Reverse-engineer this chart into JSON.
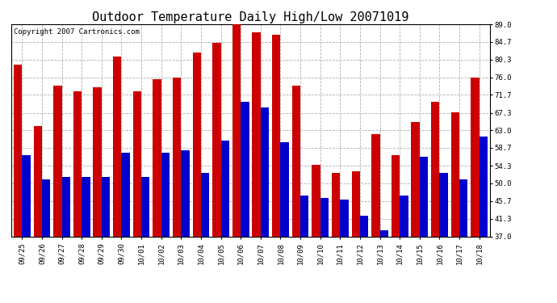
{
  "title": "Outdoor Temperature Daily High/Low 20071019",
  "copyright": "Copyright 2007 Cartronics.com",
  "dates": [
    "09/25",
    "09/26",
    "09/27",
    "09/28",
    "09/29",
    "09/30",
    "10/01",
    "10/02",
    "10/03",
    "10/04",
    "10/05",
    "10/06",
    "10/07",
    "10/08",
    "10/09",
    "10/10",
    "10/11",
    "10/12",
    "10/13",
    "10/14",
    "10/15",
    "10/16",
    "10/17",
    "10/18"
  ],
  "highs": [
    79.0,
    64.0,
    74.0,
    72.5,
    73.5,
    81.0,
    72.5,
    75.5,
    76.0,
    82.0,
    84.5,
    89.0,
    87.0,
    86.5,
    74.0,
    54.5,
    52.5,
    53.0,
    62.0,
    57.0,
    65.0,
    70.0,
    67.5,
    76.0
  ],
  "lows": [
    57.0,
    51.0,
    51.5,
    51.5,
    51.5,
    57.5,
    51.5,
    57.5,
    58.0,
    52.5,
    60.5,
    70.0,
    68.5,
    60.0,
    47.0,
    46.5,
    46.0,
    42.0,
    38.5,
    47.0,
    56.5,
    52.5,
    51.0,
    61.5
  ],
  "high_color": "#cc0000",
  "low_color": "#0000cc",
  "bg_color": "#ffffff",
  "plot_bg_color": "#ffffff",
  "grid_color": "#b0b0b0",
  "ymin": 37.0,
  "ymax": 89.0,
  "yticks": [
    37.0,
    41.3,
    45.7,
    50.0,
    54.3,
    58.7,
    63.0,
    67.3,
    71.7,
    76.0,
    80.3,
    84.7,
    89.0
  ],
  "bar_width": 0.42,
  "title_fontsize": 11,
  "copyright_fontsize": 6.5,
  "tick_fontsize": 6.5,
  "ytick_fontsize": 6.5
}
